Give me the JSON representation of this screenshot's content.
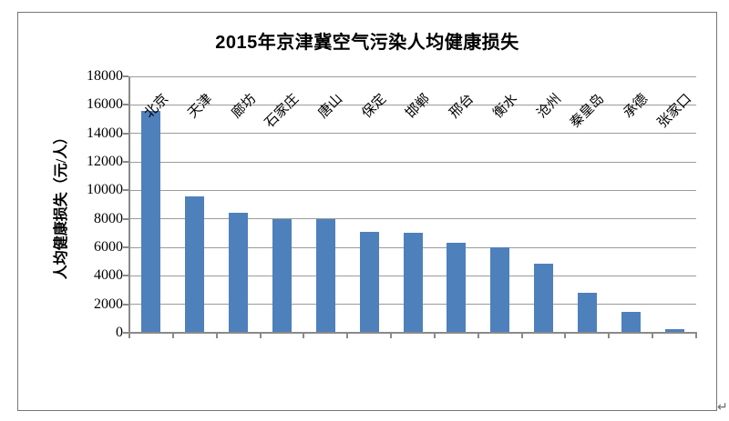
{
  "chart_data": {
    "type": "bar",
    "title": "2015年京津冀空气污染人均健康损失",
    "ylabel": "人均健康损失（元/人）",
    "xlabel": "",
    "categories": [
      "北京",
      "天津",
      "廊坊",
      "石家庄",
      "唐山",
      "保定",
      "邯郸",
      "邢台",
      "衡水",
      "沧州",
      "秦皇岛",
      "承德",
      "张家口"
    ],
    "values": [
      15600,
      9600,
      8450,
      8000,
      8000,
      7100,
      7000,
      6300,
      6000,
      4850,
      2800,
      1450,
      250
    ],
    "ylim": [
      0,
      18000
    ],
    "ytick_step": 2000,
    "yticks": [
      0,
      2000,
      4000,
      6000,
      8000,
      10000,
      12000,
      14000,
      16000,
      18000
    ],
    "grid": true,
    "legend_position": "none",
    "colors": {
      "bar": "#4e80bc",
      "gridline": "#9b9b9b",
      "axis": "#8a8a8a",
      "frame_border": "#767676",
      "text": "#000000"
    }
  },
  "page": {
    "return_mark": "↵"
  }
}
